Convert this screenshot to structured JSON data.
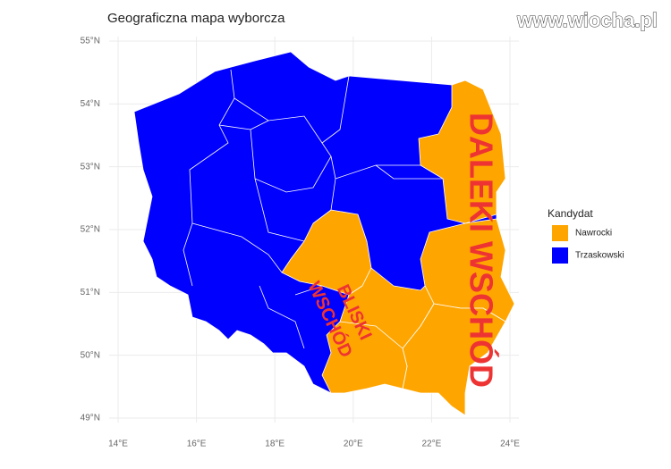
{
  "map": {
    "title": "Geograficzna mapa wyborcza",
    "watermark": "www.wiocha.pl",
    "lat_ticks": [
      {
        "value": 49,
        "label": "49°N"
      },
      {
        "value": 50,
        "label": "50°N"
      },
      {
        "value": 51,
        "label": "51°N"
      },
      {
        "value": 52,
        "label": "52°N"
      },
      {
        "value": 53,
        "label": "53°N"
      },
      {
        "value": 54,
        "label": "54°N"
      },
      {
        "value": 55,
        "label": "55°N"
      }
    ],
    "lon_ticks": [
      {
        "value": 14,
        "label": "14°E"
      },
      {
        "value": 16,
        "label": "16°E"
      },
      {
        "value": 18,
        "label": "18°E"
      },
      {
        "value": 20,
        "label": "20°E"
      },
      {
        "value": 22,
        "label": "22°E"
      },
      {
        "value": 24,
        "label": "24°E"
      }
    ],
    "legend": {
      "title": "Kandydat",
      "entries": [
        {
          "name": "Nawrocki",
          "color": "#ffa500"
        },
        {
          "name": "Trzaskowski",
          "color": "#0000ff"
        }
      ]
    },
    "annotations": {
      "far_east": "DALEKI WSCHÓD",
      "near_east": [
        "BLISKI",
        "WSCHÓD"
      ]
    }
  }
}
